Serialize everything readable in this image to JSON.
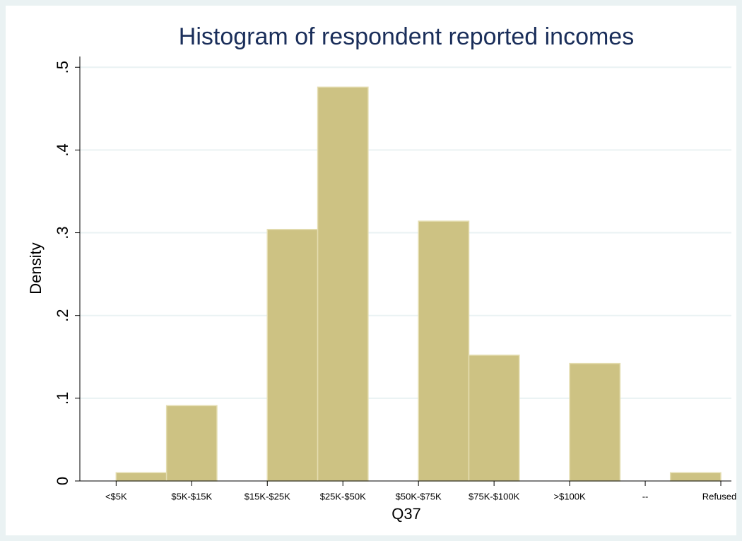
{
  "chart_data": {
    "type": "histogram",
    "title": "Histogram of respondent reported incomes",
    "xlabel": "Q37",
    "ylabel": "Density",
    "bins": [
      1,
      1.6667,
      2.3333,
      3,
      3.6667,
      4.3333,
      5,
      5.6667,
      6.3333,
      7,
      7.6667,
      8.3333,
      9
    ],
    "values": [
      0.01,
      0.091,
      0,
      0.304,
      0.476,
      0,
      0.314,
      0.152,
      0,
      0.142,
      0,
      0.01
    ],
    "color": "#cdc283",
    "xlim": [
      0.52,
      9.14
    ],
    "xticks": [
      {
        "value": 1,
        "label": "<$5K"
      },
      {
        "value": 2,
        "label": "$5K-$15K"
      },
      {
        "value": 3,
        "label": "$15K-$25K"
      },
      {
        "value": 4,
        "label": "$25K-$50K"
      },
      {
        "value": 5,
        "label": "$50K-$75K"
      },
      {
        "value": 6,
        "label": "$75K-$100K"
      },
      {
        "value": 7,
        "label": ">$100K"
      },
      {
        "value": 8,
        "label": "--"
      },
      {
        "value": 9,
        "label": "Refused"
      }
    ],
    "ylim": [
      0,
      0.513
    ],
    "yticks": [
      0,
      {
        "value": 0.1,
        "label": ".1"
      },
      {
        "value": 0.2,
        "label": ".2"
      },
      {
        "value": 0.3,
        "label": ".3"
      },
      {
        "value": 0.4,
        "label": ".4"
      },
      {
        "value": 0.5,
        "label": ".5"
      }
    ],
    "grid": true
  }
}
